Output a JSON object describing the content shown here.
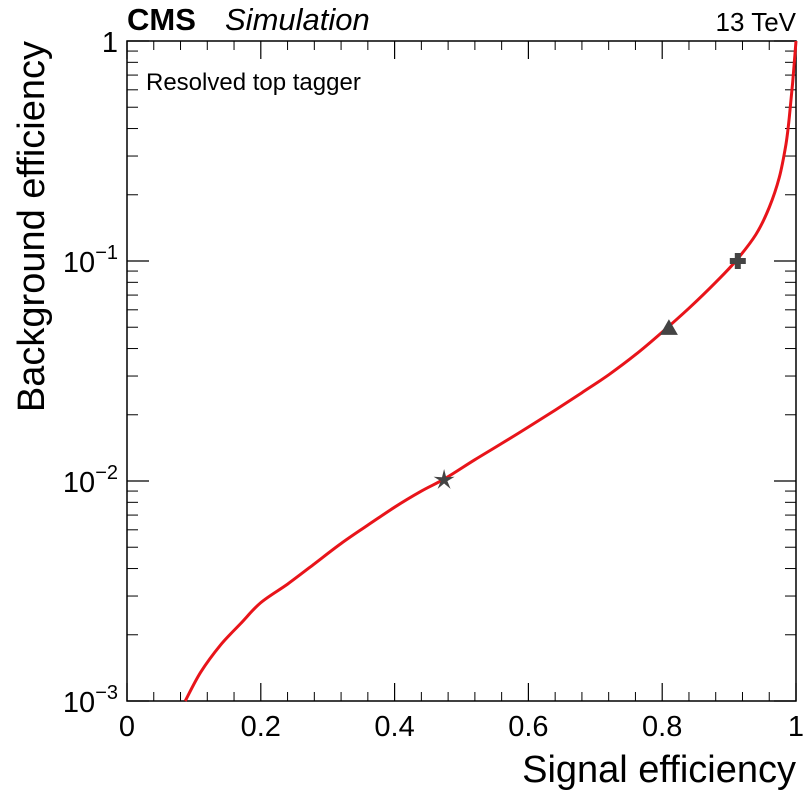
{
  "header": {
    "experiment": "CMS",
    "tag": "Simulation",
    "energy": "13 TeV"
  },
  "annotation": "Resolved top tagger",
  "chart_data": {
    "type": "line",
    "xlabel": "Signal efficiency",
    "ylabel": "Background efficiency",
    "xlim": [
      0,
      1
    ],
    "ylim": [
      0.001,
      1
    ],
    "yscale": "log",
    "grid": false,
    "x_ticks": [
      {
        "value": 0,
        "label": "0"
      },
      {
        "value": 0.2,
        "label": "0.2"
      },
      {
        "value": 0.4,
        "label": "0.4"
      },
      {
        "value": 0.6,
        "label": "0.6"
      },
      {
        "value": 0.8,
        "label": "0.8"
      },
      {
        "value": 1,
        "label": "1"
      }
    ],
    "y_ticks": [
      {
        "value": 0.001,
        "base": "10",
        "exp": "−3"
      },
      {
        "value": 0.01,
        "base": "10",
        "exp": "−2"
      },
      {
        "value": 0.1,
        "base": "10",
        "exp": "−1"
      },
      {
        "value": 1,
        "base": "1",
        "exp": ""
      }
    ],
    "series": [
      {
        "color": "#e8141a",
        "x": [
          0.087,
          0.11,
          0.14,
          0.17,
          0.2,
          0.24,
          0.28,
          0.32,
          0.36,
          0.4,
          0.44,
          0.474,
          0.52,
          0.56,
          0.6,
          0.64,
          0.68,
          0.72,
          0.76,
          0.8,
          0.84,
          0.88,
          0.91,
          0.94,
          0.96,
          0.975,
          0.985,
          0.99,
          0.995,
          1.0
        ],
        "y": [
          0.001,
          0.00135,
          0.0018,
          0.00225,
          0.0028,
          0.0034,
          0.0042,
          0.0052,
          0.0063,
          0.0076,
          0.009,
          0.0102,
          0.0125,
          0.0148,
          0.0176,
          0.021,
          0.0252,
          0.0304,
          0.0375,
          0.0475,
          0.061,
          0.08,
          0.1,
          0.132,
          0.175,
          0.24,
          0.34,
          0.45,
          0.65,
          1.0
        ]
      }
    ],
    "markers": [
      {
        "shape": "star",
        "x": 0.474,
        "y": 0.0101,
        "color": "#444444"
      },
      {
        "shape": "triangle",
        "x": 0.81,
        "y": 0.0495,
        "color": "#444444"
      },
      {
        "shape": "cross",
        "x": 0.913,
        "y": 0.1,
        "color": "#444444"
      }
    ]
  }
}
